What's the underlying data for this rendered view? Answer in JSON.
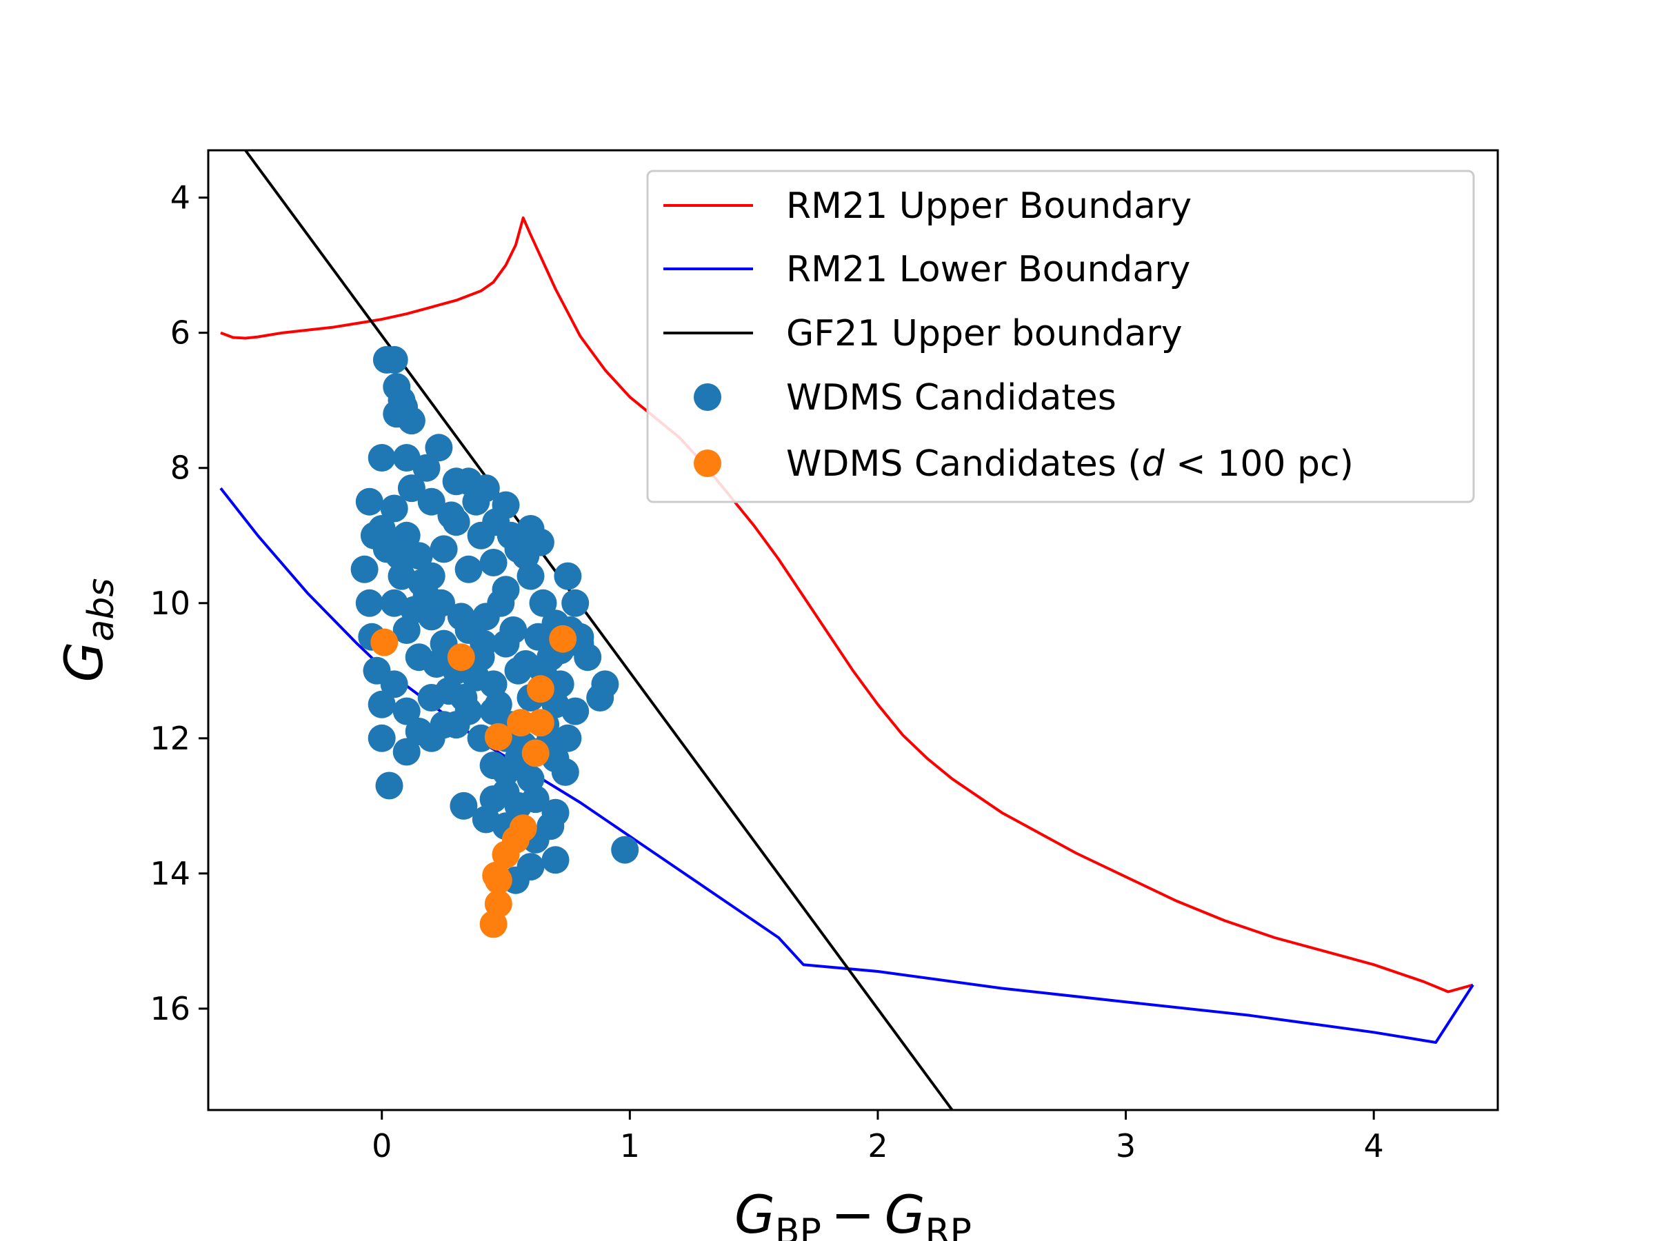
{
  "chart_data": {
    "type": "scatter",
    "title": "",
    "xlabel": {
      "main": "G",
      "sub1": "BP",
      "minus": "−",
      "main2": "G",
      "sub2": "RP"
    },
    "ylabel": {
      "main": "G",
      "sub": "abs"
    },
    "xlim": [
      -0.7,
      4.5
    ],
    "ylim": [
      17.5,
      3.3
    ],
    "y_inverted": true,
    "xticks": [
      0,
      1,
      2,
      3,
      4
    ],
    "yticks": [
      4,
      6,
      8,
      10,
      12,
      14,
      16
    ],
    "grid": false,
    "legend_position": "top-right",
    "colors": {
      "red_line": "#ff0000",
      "blue_line": "#0000ff",
      "black_line": "#000000",
      "blue_points": "#1f77b4",
      "orange_points": "#ff7f0e"
    },
    "lines": [
      {
        "name": "RM21 Upper Boundary",
        "legend_text": "RM21 Upper Boundary",
        "color": "#ff0000",
        "x": [
          -0.65,
          -0.6,
          -0.55,
          -0.5,
          -0.4,
          -0.3,
          -0.2,
          -0.1,
          0.0,
          0.1,
          0.2,
          0.3,
          0.4,
          0.45,
          0.5,
          0.54,
          0.57,
          0.6,
          0.65,
          0.7,
          0.8,
          0.9,
          1.0,
          1.1,
          1.2,
          1.3,
          1.4,
          1.5,
          1.6,
          1.7,
          1.8,
          1.9,
          2.0,
          2.1,
          2.2,
          2.3,
          2.4,
          2.5,
          2.6,
          2.8,
          3.0,
          3.2,
          3.4,
          3.6,
          3.8,
          4.0,
          4.2,
          4.3,
          4.4
        ],
        "y": [
          6.0,
          6.07,
          6.08,
          6.06,
          6.0,
          5.96,
          5.92,
          5.86,
          5.8,
          5.72,
          5.62,
          5.52,
          5.38,
          5.25,
          5.0,
          4.7,
          4.3,
          4.55,
          4.95,
          5.35,
          6.05,
          6.55,
          6.95,
          7.25,
          7.55,
          7.95,
          8.4,
          8.85,
          9.35,
          9.9,
          10.45,
          11.0,
          11.5,
          11.95,
          12.3,
          12.6,
          12.85,
          13.1,
          13.3,
          13.7,
          14.05,
          14.4,
          14.7,
          14.95,
          15.15,
          15.35,
          15.6,
          15.75,
          15.65
        ]
      },
      {
        "name": "RM21 Lower Boundary",
        "legend_text": "RM21 Lower Boundary",
        "color": "#0000ff",
        "x": [
          -0.65,
          -0.5,
          -0.3,
          -0.1,
          0.0,
          0.2,
          0.4,
          0.6,
          0.8,
          1.0,
          1.2,
          1.4,
          1.6,
          1.7,
          2.0,
          2.5,
          3.0,
          3.5,
          4.0,
          4.25,
          4.4
        ],
        "y": [
          8.3,
          9.0,
          9.85,
          10.6,
          10.95,
          11.5,
          12.05,
          12.5,
          12.95,
          13.45,
          13.95,
          14.45,
          14.95,
          15.35,
          15.45,
          15.7,
          15.9,
          16.1,
          16.35,
          16.5,
          15.65
        ]
      },
      {
        "name": "GF21 Upper boundary",
        "legend_text": "GF21 Upper boundary",
        "color": "#000000",
        "x": [
          -0.55,
          2.3
        ],
        "y": [
          3.3,
          17.5
        ]
      }
    ],
    "scatter_series": [
      {
        "name": "WDMS Candidates",
        "legend_text": "WDMS Candidates",
        "color": "#1f77b4",
        "points": [
          [
            0.02,
            6.4
          ],
          [
            0.05,
            6.4
          ],
          [
            0.06,
            6.8
          ],
          [
            0.08,
            7.0
          ],
          [
            0.06,
            7.2
          ],
          [
            0.09,
            7.1
          ],
          [
            0.12,
            7.3
          ],
          [
            0.23,
            7.7
          ],
          [
            0.0,
            7.85
          ],
          [
            0.1,
            7.85
          ],
          [
            0.18,
            8.0
          ],
          [
            0.3,
            8.2
          ],
          [
            0.35,
            8.2
          ],
          [
            0.42,
            8.3
          ],
          [
            0.5,
            8.55
          ],
          [
            0.6,
            8.9
          ],
          [
            0.64,
            9.1
          ],
          [
            0.75,
            9.6
          ],
          [
            0.78,
            10.0
          ],
          [
            0.8,
            10.6
          ],
          [
            0.83,
            10.8
          ],
          [
            0.9,
            11.2
          ],
          [
            0.88,
            11.4
          ],
          [
            0.78,
            11.6
          ],
          [
            0.75,
            12.0
          ],
          [
            0.7,
            12.3
          ],
          [
            0.74,
            12.5
          ],
          [
            0.7,
            13.1
          ],
          [
            0.68,
            13.3
          ],
          [
            0.7,
            13.8
          ],
          [
            0.6,
            13.9
          ],
          [
            0.54,
            14.1
          ],
          [
            0.98,
            13.65
          ],
          [
            0.33,
            13.0
          ],
          [
            0.42,
            13.2
          ],
          [
            0.03,
            12.7
          ],
          [
            -0.05,
            8.5
          ],
          [
            -0.03,
            9.0
          ],
          [
            -0.07,
            9.5
          ],
          [
            -0.05,
            10.0
          ],
          [
            -0.04,
            10.5
          ],
          [
            -0.02,
            11.0
          ],
          [
            0.0,
            11.5
          ],
          [
            0.0,
            12.0
          ],
          [
            0.1,
            12.2
          ],
          [
            0.2,
            12.0
          ],
          [
            0.3,
            11.8
          ],
          [
            0.45,
            12.4
          ],
          [
            0.5,
            12.8
          ],
          [
            0.55,
            13.0
          ],
          [
            0.62,
            13.5
          ],
          [
            0.5,
            13.3
          ],
          [
            0.05,
            8.6
          ],
          [
            0.1,
            9.0
          ],
          [
            0.15,
            9.3
          ],
          [
            0.2,
            9.6
          ],
          [
            0.25,
            9.2
          ],
          [
            0.3,
            8.8
          ],
          [
            0.35,
            9.5
          ],
          [
            0.4,
            9.0
          ],
          [
            0.45,
            9.4
          ],
          [
            0.5,
            9.8
          ],
          [
            0.55,
            9.2
          ],
          [
            0.6,
            9.6
          ],
          [
            0.65,
            10.0
          ],
          [
            0.7,
            10.3
          ],
          [
            0.72,
            10.7
          ],
          [
            0.05,
            10.0
          ],
          [
            0.1,
            10.4
          ],
          [
            0.15,
            10.8
          ],
          [
            0.2,
            10.2
          ],
          [
            0.25,
            10.6
          ],
          [
            0.3,
            11.0
          ],
          [
            0.35,
            10.4
          ],
          [
            0.4,
            10.8
          ],
          [
            0.45,
            11.2
          ],
          [
            0.5,
            10.6
          ],
          [
            0.55,
            11.0
          ],
          [
            0.6,
            11.4
          ],
          [
            0.65,
            11.0
          ],
          [
            0.7,
            11.5
          ],
          [
            0.05,
            11.2
          ],
          [
            0.1,
            11.6
          ],
          [
            0.15,
            11.9
          ],
          [
            0.2,
            11.4
          ],
          [
            0.25,
            11.8
          ],
          [
            0.35,
            11.6
          ],
          [
            0.4,
            12.0
          ],
          [
            0.45,
            11.6
          ],
          [
            0.5,
            12.0
          ],
          [
            0.55,
            12.3
          ],
          [
            0.6,
            12.6
          ],
          [
            0.62,
            12.9
          ],
          [
            0.5,
            12.5
          ],
          [
            0.45,
            12.9
          ],
          [
            0.55,
            13.4
          ],
          [
            0.12,
            8.3
          ],
          [
            0.2,
            8.5
          ],
          [
            0.28,
            8.7
          ],
          [
            0.38,
            8.5
          ],
          [
            0.46,
            8.8
          ],
          [
            0.52,
            9.0
          ],
          [
            0.58,
            9.3
          ],
          [
            0.02,
            9.2
          ],
          [
            0.08,
            9.6
          ],
          [
            0.13,
            10.1
          ],
          [
            0.18,
            9.9
          ],
          [
            0.22,
            10.9
          ],
          [
            0.27,
            11.3
          ],
          [
            0.33,
            11.4
          ],
          [
            0.38,
            11.1
          ],
          [
            0.42,
            10.2
          ],
          [
            0.48,
            10.0
          ],
          [
            0.53,
            10.4
          ],
          [
            0.58,
            10.9
          ],
          [
            0.63,
            10.5
          ],
          [
            0.68,
            10.8
          ],
          [
            0.0,
            8.9
          ],
          [
            0.07,
            9.3
          ],
          [
            0.16,
            9.7
          ],
          [
            0.24,
            10.0
          ],
          [
            0.32,
            10.2
          ],
          [
            0.41,
            10.6
          ],
          [
            0.47,
            11.5
          ],
          [
            0.52,
            11.8
          ],
          [
            0.57,
            12.1
          ],
          [
            0.63,
            12.2
          ],
          [
            0.68,
            12.0
          ],
          [
            0.66,
            11.8
          ],
          [
            0.72,
            11.2
          ],
          [
            0.76,
            10.4
          ],
          [
            0.8,
            10.5
          ]
        ]
      },
      {
        "name": "WDMS Candidates (d < 100 pc)",
        "legend_text_prefix": "WDMS Candidates (",
        "legend_text_italic": "d",
        "legend_text_suffix": " < 100 pc)",
        "color": "#ff7f0e",
        "points": [
          [
            0.01,
            10.58
          ],
          [
            0.32,
            10.8
          ],
          [
            0.73,
            10.53
          ],
          [
            0.64,
            11.27
          ],
          [
            0.56,
            11.77
          ],
          [
            0.64,
            11.77
          ],
          [
            0.47,
            11.98
          ],
          [
            0.62,
            12.22
          ],
          [
            0.57,
            13.33
          ],
          [
            0.54,
            13.5
          ],
          [
            0.5,
            13.72
          ],
          [
            0.46,
            14.03
          ],
          [
            0.47,
            14.1
          ],
          [
            0.47,
            14.45
          ],
          [
            0.45,
            14.75
          ]
        ]
      }
    ]
  }
}
